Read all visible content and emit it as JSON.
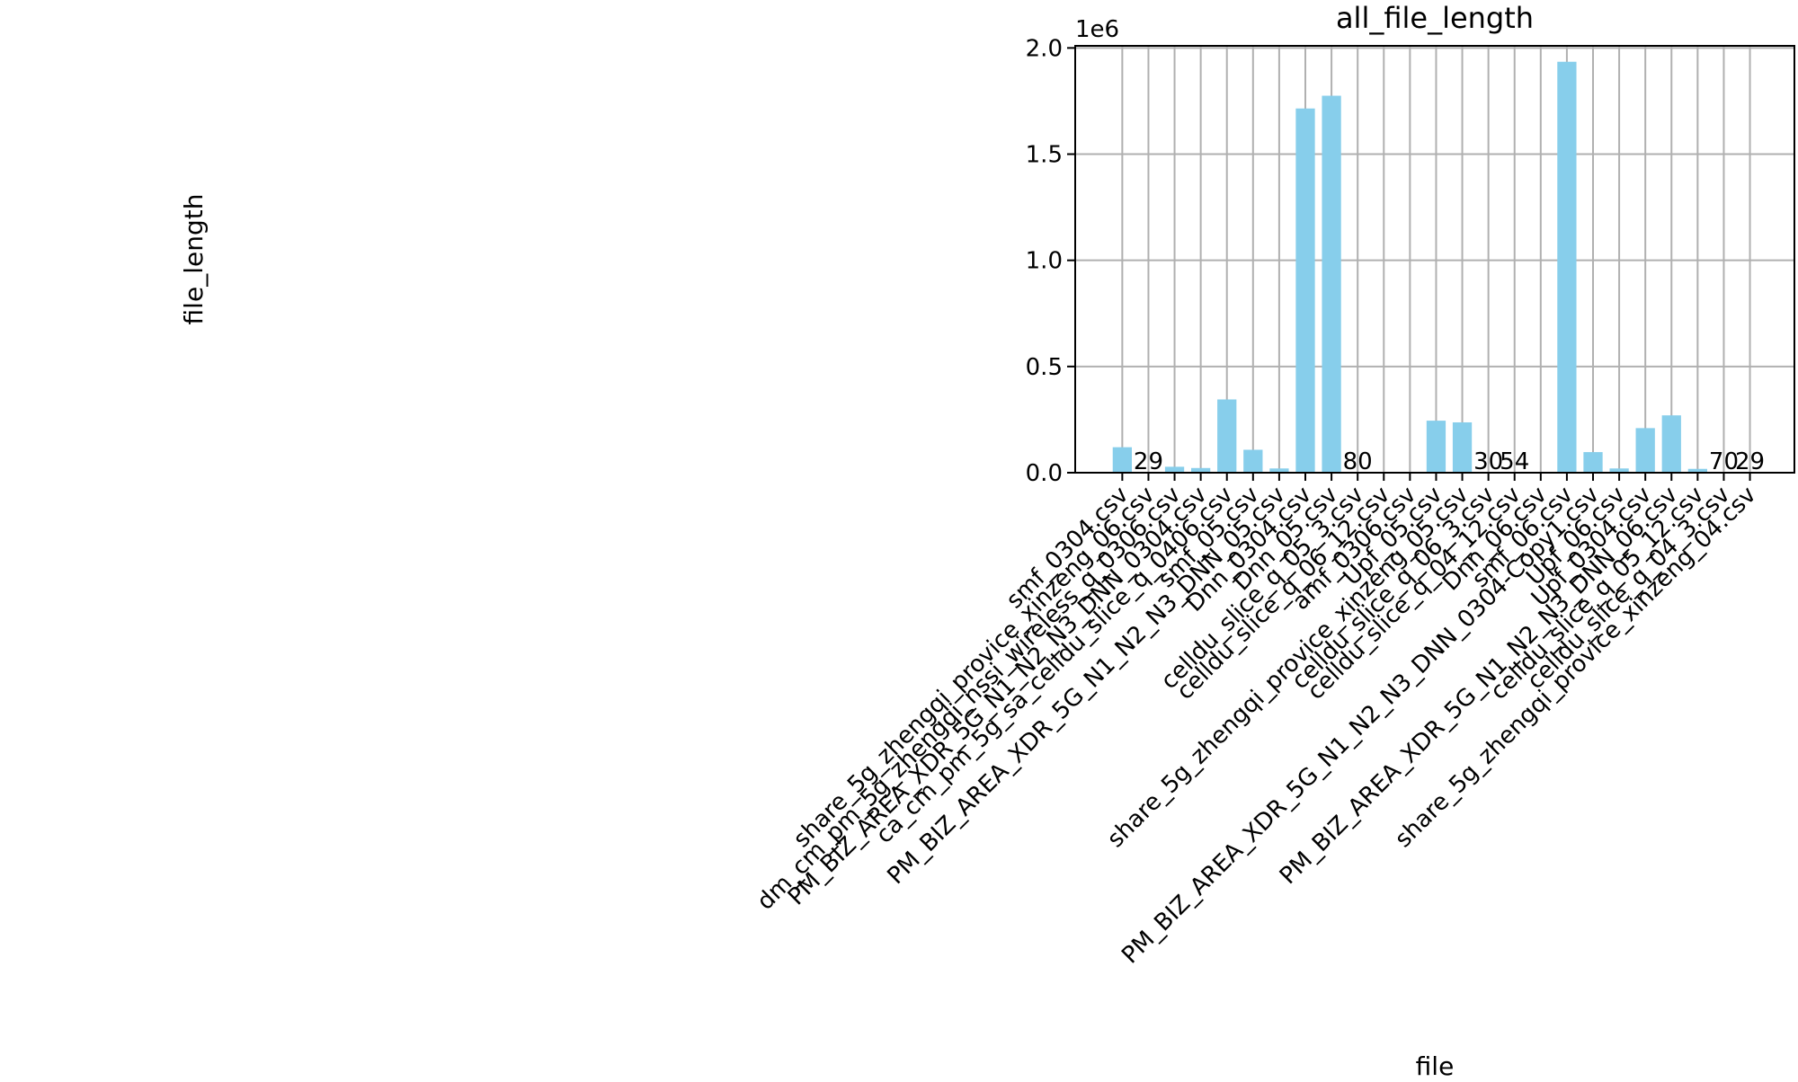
{
  "chart_data": {
    "type": "bar",
    "title": "all_file_length",
    "xlabel": "file",
    "ylabel": "file_length",
    "y_offset_label": "1e6",
    "y_scale": 1000000,
    "ylim": [
      0,
      2000000
    ],
    "y_ticks": [
      0,
      500000,
      1000000,
      1500000,
      2000000
    ],
    "y_tick_labels": [
      "0.0",
      "0.5",
      "1.0",
      "1.5",
      "2.0"
    ],
    "grid": true,
    "bar_color": "#87ceeb",
    "categories": [
      "smf_0304.csv",
      "share_5g_zhengqi_provice_xinzeng_06.csv",
      "dm_cm_pm_5g_zhengqi_nssi_wireless_q_0306.csv",
      "PM_BIZ_AREA_XDR_5G_N1_N2_N3_DNN_0304.csv",
      "ca_cm_pm_5g_sa_celldu_slice_q_0406.csv",
      "smf_05.csv",
      "PM_BIZ_AREA_XDR_5G_N1_N2_N3_DNN_05.csv",
      "Dnn_0304.csv",
      "Dnn_05.csv",
      "celldu_slice_q_05_3.csv",
      "celldu_slice_q_06_12.csv",
      "amf_0306.csv",
      "Upf_05.csv",
      "share_5g_zhengqi_provice_xinzeng_05.csv",
      "celldu_slice_q_06_3.csv",
      "celldu_slice_q_04_12.csv",
      "Dnn_06.csv",
      "smf_06.csv",
      "PM_BIZ_AREA_XDR_5G_N1_N2_N3_DNN_0304-Copy1.csv",
      "Upf_06.csv",
      "Upf_0304.csv",
      "PM_BIZ_AREA_XDR_5G_N1_N2_N3_DNN_06.csv",
      "celldu_slice_q_05_12.csv",
      "celldu_slice_q_04_3.csv",
      "share_5g_zhengqi_provice_xinzeng_04.csv"
    ],
    "values": [
      120000,
      29,
      28000,
      22000,
      345000,
      108000,
      20000,
      1715000,
      1775000,
      80,
      0,
      0,
      245000,
      237000,
      30,
      54,
      0,
      1935000,
      97000,
      20000,
      210000,
      270000,
      18000,
      70,
      29
    ],
    "bar_labels": [
      "",
      "29",
      "",
      "",
      "",
      "",
      "",
      "",
      "",
      "80",
      "",
      "",
      "",
      "",
      "30",
      "54",
      "",
      "",
      "",
      "",
      "",
      "",
      "",
      "70",
      "29"
    ]
  }
}
